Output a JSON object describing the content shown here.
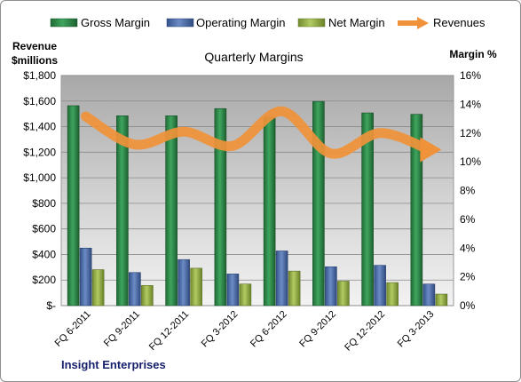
{
  "chart_data": {
    "type": "bar",
    "title": "Quarterly Margins",
    "company": "Insight Enterprises",
    "left_axis": {
      "label_line1": "Revenue",
      "label_line2": "$millions",
      "ylim": [
        0,
        1800
      ],
      "ticks": [
        0,
        200,
        400,
        600,
        800,
        1000,
        1200,
        1400,
        1600,
        1800
      ],
      "tick_labels": [
        "$-",
        "$200",
        "$400",
        "$600",
        "$800",
        "$1,000",
        "$1,200",
        "$1,400",
        "$1,600",
        "$1,800"
      ]
    },
    "right_axis": {
      "label": "Margin %",
      "ylim": [
        0,
        16
      ],
      "ticks": [
        0,
        2,
        4,
        6,
        8,
        10,
        12,
        14,
        16
      ],
      "tick_labels": [
        "0%",
        "2%",
        "4%",
        "6%",
        "8%",
        "10%",
        "12%",
        "14%",
        "16%"
      ]
    },
    "categories": [
      "FQ 6-2011",
      "FQ 9-2011",
      "FQ 12-2011",
      "FQ 3-2012",
      "FQ 6-2012",
      "FQ 9-2012",
      "FQ 12-2012",
      "FQ 3-2013"
    ],
    "series": [
      {
        "name": "Gross Margin",
        "axis": "right",
        "type": "bar",
        "color": "#2e8b4a",
        "values": [
          13.9,
          13.2,
          13.2,
          13.7,
          13.1,
          14.2,
          13.4,
          13.3
        ]
      },
      {
        "name": "Operating Margin",
        "axis": "right",
        "type": "bar",
        "color": "#4f6fa8",
        "values": [
          4.0,
          2.3,
          3.2,
          2.2,
          3.8,
          2.7,
          2.8,
          1.5
        ]
      },
      {
        "name": "Net Margin",
        "axis": "right",
        "type": "bar",
        "color": "#9bb548",
        "values": [
          2.5,
          1.4,
          2.6,
          1.5,
          2.4,
          1.7,
          1.6,
          0.8
        ]
      },
      {
        "name": "Revenues",
        "axis": "left",
        "type": "line",
        "color": "#f0923a",
        "values": [
          1480,
          1260,
          1360,
          1250,
          1520,
          1190,
          1350,
          1220
        ]
      }
    ],
    "legend_position": "top",
    "grid": true,
    "plot_background": "#d9d9d9"
  }
}
